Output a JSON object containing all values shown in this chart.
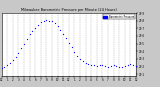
{
  "title": "Milwaukee Barometric Pressure per Minute (24 Hours)",
  "bg_color": "#c8c8c8",
  "plot_bg": "#ffffff",
  "dot_color": "#0000ff",
  "dot_size": 0.8,
  "legend_label": "Barometric Pressure",
  "legend_color": "#0000ff",
  "ylim": [
    29.08,
    29.9
  ],
  "xlim": [
    0,
    1440
  ],
  "x_ticks": [
    0,
    60,
    120,
    180,
    240,
    300,
    360,
    420,
    480,
    540,
    600,
    660,
    720,
    780,
    840,
    900,
    960,
    1020,
    1080,
    1140,
    1200,
    1260,
    1320,
    1380,
    1440
  ],
  "x_tick_labels": [
    "12",
    "1",
    "2",
    "3",
    "4",
    "5",
    "6",
    "7",
    "8",
    "9",
    "10",
    "11",
    "12",
    "1",
    "2",
    "3",
    "4",
    "5",
    "6",
    "7",
    "8",
    "9",
    "10",
    "11",
    "12"
  ],
  "y_ticks": [
    29.1,
    29.2,
    29.3,
    29.4,
    29.5,
    29.6,
    29.7,
    29.8,
    29.9
  ],
  "data_x": [
    0,
    30,
    60,
    90,
    120,
    150,
    180,
    210,
    240,
    270,
    300,
    330,
    360,
    390,
    420,
    450,
    480,
    510,
    540,
    570,
    600,
    630,
    660,
    690,
    720,
    750,
    780,
    810,
    840,
    870,
    900,
    930,
    960,
    990,
    1020,
    1050,
    1080,
    1110,
    1140,
    1170,
    1200,
    1230,
    1260,
    1290,
    1320,
    1350,
    1380,
    1410,
    1440
  ],
  "data_y": [
    29.18,
    29.2,
    29.22,
    29.25,
    29.28,
    29.32,
    29.38,
    29.44,
    29.5,
    29.56,
    29.62,
    29.67,
    29.71,
    29.75,
    29.78,
    29.8,
    29.81,
    29.8,
    29.79,
    29.77,
    29.73,
    29.68,
    29.63,
    29.57,
    29.51,
    29.45,
    29.39,
    29.34,
    29.3,
    29.27,
    29.25,
    29.23,
    29.22,
    29.22,
    29.21,
    29.22,
    29.22,
    29.21,
    29.2,
    29.21,
    29.22,
    29.21,
    29.2,
    29.2,
    29.21,
    29.22,
    29.23,
    29.22,
    29.21
  ]
}
